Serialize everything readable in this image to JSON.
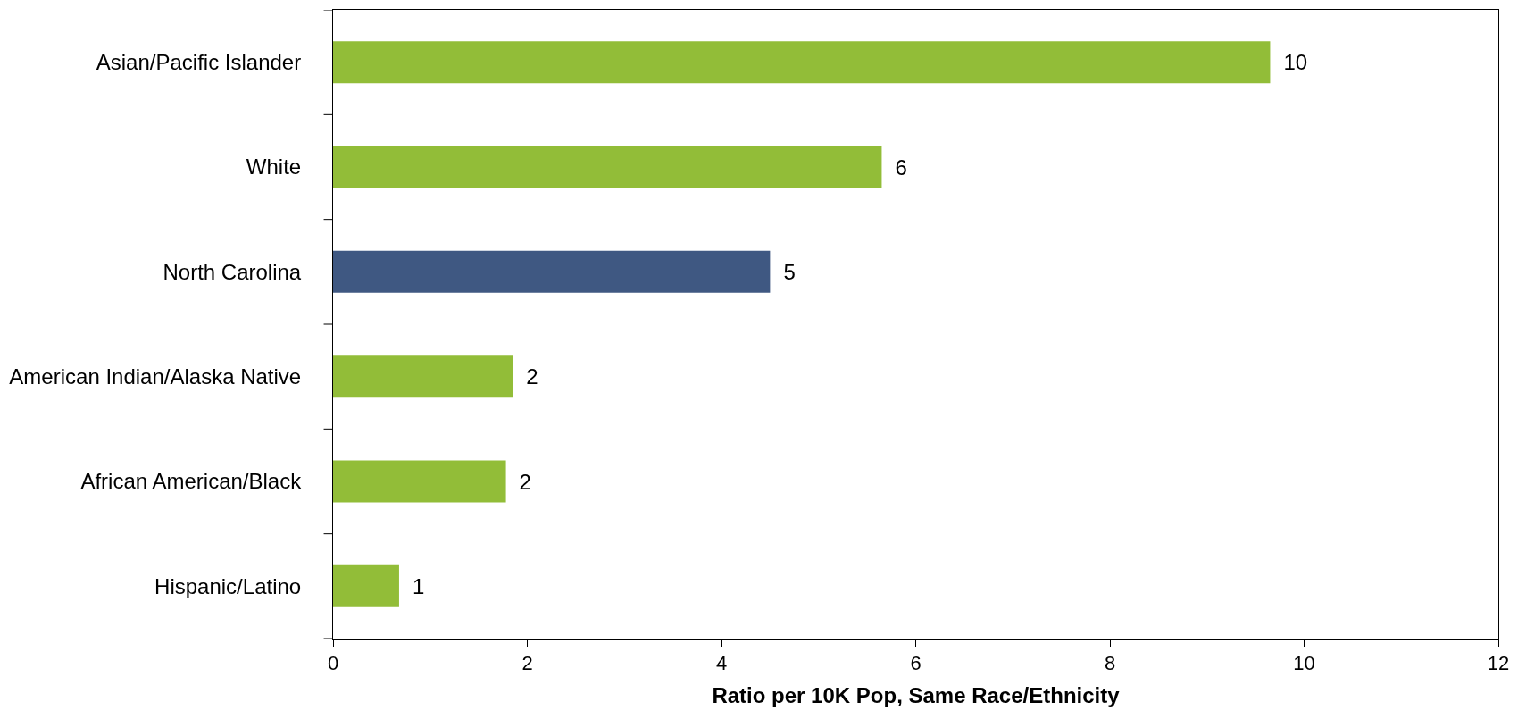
{
  "chart_data": {
    "type": "bar",
    "orientation": "horizontal",
    "xlabel": "Ratio per 10K Pop, Same Race/Ethnicity",
    "categories": [
      "Asian/Pacific Islander",
      "White",
      "North Carolina",
      "American Indian/Alaska Native",
      "African American/Black",
      "Hispanic/Latino"
    ],
    "values": [
      9.65,
      5.65,
      4.5,
      1.85,
      1.78,
      0.68
    ],
    "value_labels": [
      "10",
      "6",
      "5",
      "2",
      "2",
      "1"
    ],
    "colors": [
      "#92bd38",
      "#92bd38",
      "#3f5882",
      "#92bd38",
      "#92bd38",
      "#92bd38"
    ],
    "xlim": [
      0,
      12
    ],
    "xticks": [
      0,
      2,
      4,
      6,
      8,
      10,
      12
    ],
    "grid": false
  }
}
